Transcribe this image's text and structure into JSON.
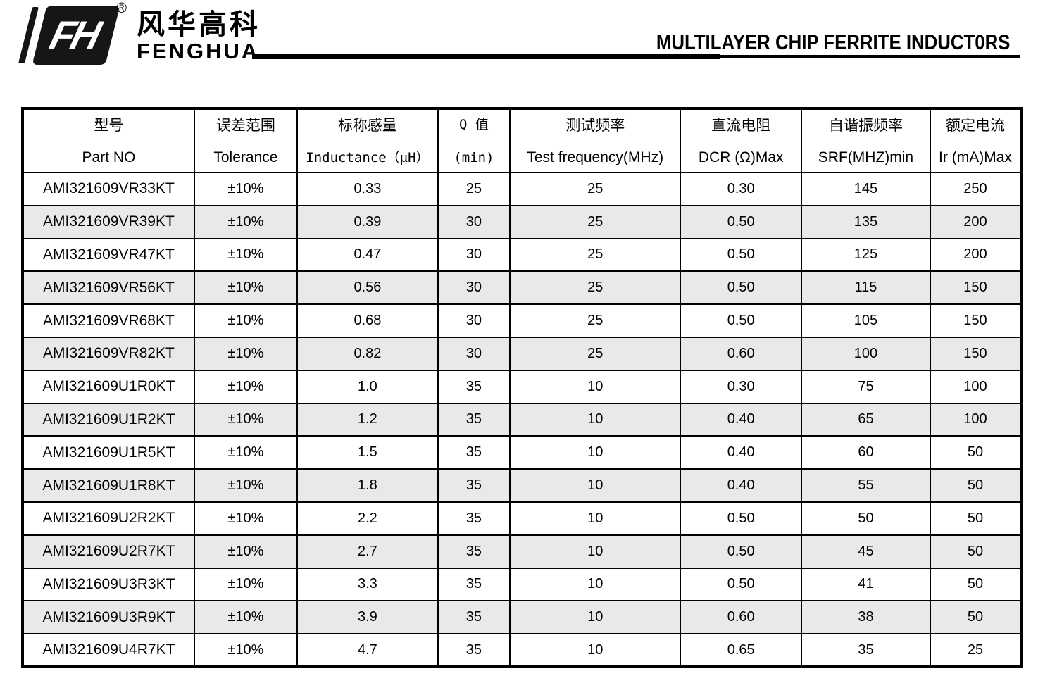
{
  "header": {
    "logo": {
      "mark_text": "FH",
      "registered": "®",
      "brand_cn": "风华高科",
      "brand_en": "FENGHUA"
    },
    "title": "MULTILAYER CHIP FERRITE INDUCT0RS"
  },
  "table": {
    "columns": [
      {
        "cn": "型号",
        "en": "Part NO"
      },
      {
        "cn": "误差范围",
        "en": "Tolerance"
      },
      {
        "cn": "标称感量",
        "en": "Inductance（μH）"
      },
      {
        "cn": "Q 值",
        "en": "(min)"
      },
      {
        "cn": "测试频率",
        "en": "Test frequency(MHz)"
      },
      {
        "cn": "直流电阻",
        "en": "DCR (Ω)Max"
      },
      {
        "cn": "自谐振频率",
        "en": "SRF(MHZ)min"
      },
      {
        "cn": "额定电流",
        "en": "Ir (mA)Max"
      }
    ],
    "rows": [
      [
        "AMI321609VR33KT",
        "±10%",
        "0.33",
        "25",
        "25",
        "0.30",
        "145",
        "250"
      ],
      [
        "AMI321609VR39KT",
        "±10%",
        "0.39",
        "30",
        "25",
        "0.50",
        "135",
        "200"
      ],
      [
        "AMI321609VR47KT",
        "±10%",
        "0.47",
        "30",
        "25",
        "0.50",
        "125",
        "200"
      ],
      [
        "AMI321609VR56KT",
        "±10%",
        "0.56",
        "30",
        "25",
        "0.50",
        "115",
        "150"
      ],
      [
        "AMI321609VR68KT",
        "±10%",
        "0.68",
        "30",
        "25",
        "0.50",
        "105",
        "150"
      ],
      [
        "AMI321609VR82KT",
        "±10%",
        "0.82",
        "30",
        "25",
        "0.60",
        "100",
        "150"
      ],
      [
        "AMI321609U1R0KT",
        "±10%",
        "1.0",
        "35",
        "10",
        "0.30",
        "75",
        "100"
      ],
      [
        "AMI321609U1R2KT",
        "±10%",
        "1.2",
        "35",
        "10",
        "0.40",
        "65",
        "100"
      ],
      [
        "AMI321609U1R5KT",
        "±10%",
        "1.5",
        "35",
        "10",
        "0.40",
        "60",
        "50"
      ],
      [
        "AMI321609U1R8KT",
        "±10%",
        "1.8",
        "35",
        "10",
        "0.40",
        "55",
        "50"
      ],
      [
        "AMI321609U2R2KT",
        "±10%",
        "2.2",
        "35",
        "10",
        "0.50",
        "50",
        "50"
      ],
      [
        "AMI321609U2R7KT",
        "±10%",
        "2.7",
        "35",
        "10",
        "0.50",
        "45",
        "50"
      ],
      [
        "AMI321609U3R3KT",
        "±10%",
        "3.3",
        "35",
        "10",
        "0.50",
        "41",
        "50"
      ],
      [
        "AMI321609U3R9KT",
        "±10%",
        "3.9",
        "35",
        "10",
        "0.60",
        "38",
        "50"
      ],
      [
        "AMI321609U4R7KT",
        "±10%",
        "4.7",
        "35",
        "10",
        "0.65",
        "35",
        "25"
      ]
    ]
  },
  "colors": {
    "ink": "#000000",
    "row_alt": "#e9e9e9",
    "logo_black": "#161616"
  }
}
